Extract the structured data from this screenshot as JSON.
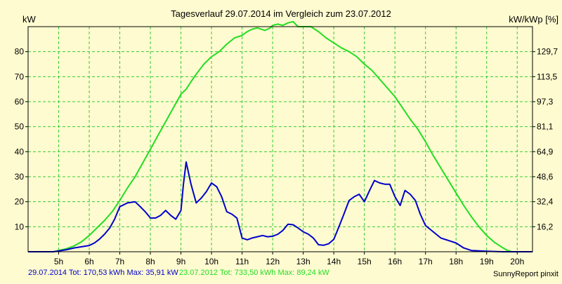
{
  "colors": {
    "background": "#fffbd0",
    "grid": "#33cc33",
    "series_2014": "#0000cc",
    "series_2012": "#22dd22"
  },
  "chart_data": {
    "type": "line",
    "title": "Tagesverlauf 29.07.2014 im Vergleich zum 23.07.2012",
    "ylabel_left": "kW",
    "ylabel_right": "kW/kWp [%]",
    "xlim": [
      4.0,
      20.5
    ],
    "ylim": [
      0,
      90
    ],
    "grid": true,
    "x_ticks": [
      {
        "x": 5,
        "label": "5h"
      },
      {
        "x": 6,
        "label": "6h"
      },
      {
        "x": 7,
        "label": "7h"
      },
      {
        "x": 8,
        "label": "8h"
      },
      {
        "x": 9,
        "label": "9h"
      },
      {
        "x": 10,
        "label": "10h"
      },
      {
        "x": 11,
        "label": "11h"
      },
      {
        "x": 12,
        "label": "12h"
      },
      {
        "x": 13,
        "label": "13h"
      },
      {
        "x": 14,
        "label": "14h"
      },
      {
        "x": 15,
        "label": "15h"
      },
      {
        "x": 16,
        "label": "16h"
      },
      {
        "x": 17,
        "label": "17h"
      },
      {
        "x": 18,
        "label": "18h"
      },
      {
        "x": 19,
        "label": "19h"
      },
      {
        "x": 20,
        "label": "20h"
      }
    ],
    "y_ticks_left": [
      {
        "y": 10,
        "label": "10"
      },
      {
        "y": 20,
        "label": "20"
      },
      {
        "y": 30,
        "label": "30"
      },
      {
        "y": 40,
        "label": "40"
      },
      {
        "y": 50,
        "label": "50"
      },
      {
        "y": 60,
        "label": "60"
      },
      {
        "y": 70,
        "label": "70"
      },
      {
        "y": 80,
        "label": "80"
      }
    ],
    "y_ticks_right": [
      {
        "y": 10,
        "label": "16,2"
      },
      {
        "y": 20,
        "label": "32,4"
      },
      {
        "y": 30,
        "label": "48,6"
      },
      {
        "y": 40,
        "label": "64,9"
      },
      {
        "y": 50,
        "label": "81,1"
      },
      {
        "y": 60,
        "label": "97,3"
      },
      {
        "y": 70,
        "label": "113,5"
      },
      {
        "y": 80,
        "label": "129,7"
      }
    ],
    "series": [
      {
        "name": "23.07.2012",
        "color": "#22dd22",
        "x": [
          4.0,
          4.5,
          4.83,
          5.0,
          5.25,
          5.5,
          5.75,
          6.0,
          6.25,
          6.5,
          6.75,
          7.0,
          7.25,
          7.5,
          7.75,
          8.0,
          8.25,
          8.5,
          8.75,
          9.0,
          9.17,
          9.33,
          9.5,
          9.75,
          10.0,
          10.25,
          10.5,
          10.75,
          11.0,
          11.17,
          11.33,
          11.5,
          11.75,
          11.92,
          12.0,
          12.17,
          12.33,
          12.5,
          12.67,
          12.83,
          13.0,
          13.25,
          13.5,
          13.75,
          14.0,
          14.25,
          14.5,
          14.75,
          15.0,
          15.25,
          15.5,
          15.75,
          16.0,
          16.25,
          16.5,
          16.75,
          17.0,
          17.25,
          17.5,
          17.75,
          18.0,
          18.25,
          18.5,
          18.75,
          19.0,
          19.25,
          19.5,
          19.67,
          19.83,
          20.0,
          20.5
        ],
        "y": [
          0,
          0,
          0,
          0.5,
          1.2,
          2.3,
          4.0,
          6.5,
          9.5,
          12.5,
          16.0,
          20.5,
          25.5,
          30.0,
          35.5,
          41.0,
          46.5,
          52.0,
          57.5,
          63.0,
          65.0,
          68.0,
          71.0,
          75.0,
          78.0,
          80.0,
          83.0,
          85.5,
          86.5,
          88.0,
          89.0,
          89.5,
          88.5,
          89.5,
          90.5,
          91.0,
          90.5,
          91.5,
          92.0,
          90.0,
          90.0,
          90.0,
          88.0,
          85.5,
          83.5,
          81.5,
          80.0,
          78.0,
          75.0,
          72.5,
          69.0,
          65.5,
          62.0,
          57.5,
          53.0,
          49.0,
          44.0,
          38.5,
          33.5,
          28.5,
          23.5,
          18.5,
          14.0,
          10.0,
          6.5,
          3.8,
          1.8,
          0.6,
          0,
          0,
          0
        ]
      },
      {
        "name": "29.07.2014",
        "color": "#0000cc",
        "x": [
          4.0,
          4.5,
          4.83,
          5.0,
          5.25,
          5.5,
          5.75,
          6.0,
          6.17,
          6.33,
          6.5,
          6.67,
          6.83,
          7.0,
          7.25,
          7.5,
          7.67,
          7.83,
          8.0,
          8.17,
          8.33,
          8.5,
          8.67,
          8.83,
          9.0,
          9.08,
          9.17,
          9.33,
          9.5,
          9.67,
          9.83,
          10.0,
          10.17,
          10.33,
          10.5,
          10.67,
          10.83,
          11.0,
          11.17,
          11.33,
          11.5,
          11.67,
          11.83,
          12.0,
          12.17,
          12.33,
          12.5,
          12.67,
          12.83,
          13.0,
          13.17,
          13.33,
          13.5,
          13.67,
          13.83,
          14.0,
          14.17,
          14.33,
          14.5,
          14.67,
          14.83,
          15.0,
          15.17,
          15.33,
          15.5,
          15.67,
          15.83,
          16.0,
          16.17,
          16.33,
          16.5,
          16.67,
          16.83,
          17.0,
          17.25,
          17.5,
          17.75,
          18.0,
          18.25,
          18.5,
          19.0,
          19.5,
          20.0,
          20.5
        ],
        "y": [
          0,
          0,
          0,
          0.3,
          0.8,
          1.5,
          2.0,
          2.5,
          3.5,
          5.0,
          7.0,
          9.5,
          13.0,
          18.0,
          19.5,
          20.0,
          18.0,
          16.0,
          13.5,
          13.5,
          14.5,
          16.5,
          14.5,
          13.0,
          16.5,
          27.0,
          35.9,
          27.0,
          19.5,
          21.5,
          24.0,
          27.5,
          26.0,
          22.0,
          16.0,
          15.0,
          13.5,
          5.5,
          4.8,
          5.5,
          6.0,
          6.5,
          6.0,
          6.2,
          7.0,
          8.5,
          11.0,
          10.8,
          9.5,
          8.0,
          7.0,
          5.5,
          2.8,
          2.6,
          3.2,
          5.0,
          10.0,
          15.0,
          20.5,
          22.0,
          23.0,
          20.0,
          24.5,
          28.5,
          27.5,
          27.0,
          27.0,
          22.0,
          18.5,
          24.5,
          23.0,
          20.5,
          15.0,
          10.5,
          8.0,
          5.5,
          4.5,
          3.5,
          1.5,
          0.5,
          0.2,
          0,
          0,
          0
        ]
      }
    ]
  },
  "footer": {
    "series_2014_text": "29.07.2014 Tot: 170,53 kWh Max: 35,91 kW",
    "series_2012_text": "23.07.2012 Tot: 733,50 kWh Max: 89,24 kW",
    "brand": "SunnyReport pinxit"
  }
}
